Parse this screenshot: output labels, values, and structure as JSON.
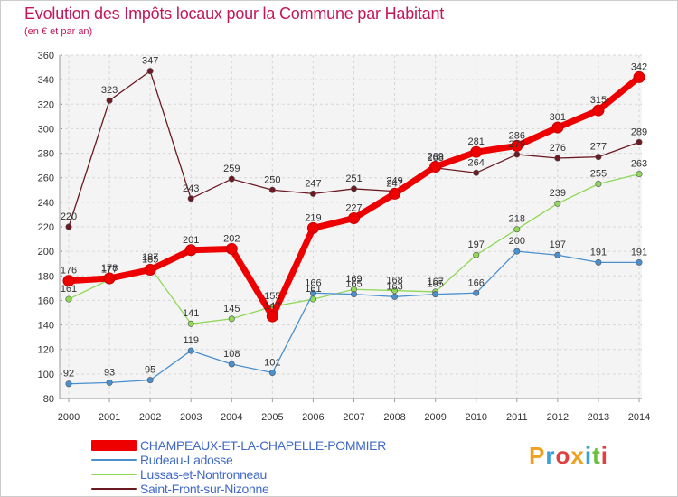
{
  "title": "Evolution des Impôts locaux pour la Commune par Habitant",
  "subtitle": "(en € et par an)",
  "logo": "Proxiti",
  "chart_data": {
    "type": "line",
    "title": "Evolution des Impôts locaux pour la Commune par Habitant",
    "subtitle": "(en € et par an)",
    "x": [
      "2000",
      "2001",
      "2002",
      "2003",
      "2004",
      "2005",
      "2006",
      "2007",
      "2008",
      "2009",
      "2010",
      "2011",
      "2012",
      "2013",
      "2014"
    ],
    "yticks": [
      80,
      100,
      120,
      140,
      160,
      180,
      200,
      220,
      240,
      260,
      280,
      300,
      320,
      340,
      360
    ],
    "ylim": [
      80,
      360
    ],
    "grid": true,
    "legend_position": "bottom-left",
    "series": [
      {
        "name": "CHAMPEAUX-ET-LA-CHAPELLE-POMMIER",
        "color": "#ee0000",
        "values": [
          176,
          178,
          185,
          201,
          202,
          147,
          219,
          227,
          247,
          269,
          281,
          286,
          301,
          315,
          342
        ]
      },
      {
        "name": "Rudeau-Ladosse",
        "color": "#4a90cf",
        "values": [
          92,
          93,
          95,
          119,
          108,
          101,
          166,
          165,
          163,
          165,
          166,
          200,
          197,
          191,
          191
        ]
      },
      {
        "name": "Lussas-et-Nontronneau",
        "color": "#8fd858",
        "values": [
          161,
          177,
          187,
          141,
          145,
          155,
          161,
          169,
          168,
          167,
          197,
          218,
          239,
          255,
          263
        ]
      },
      {
        "name": "Saint-Front-sur-Nizonne",
        "color": "#6b1a24",
        "values": [
          220,
          323,
          347,
          243,
          259,
          250,
          247,
          251,
          249,
          268,
          264,
          279,
          276,
          277,
          289
        ]
      }
    ]
  }
}
